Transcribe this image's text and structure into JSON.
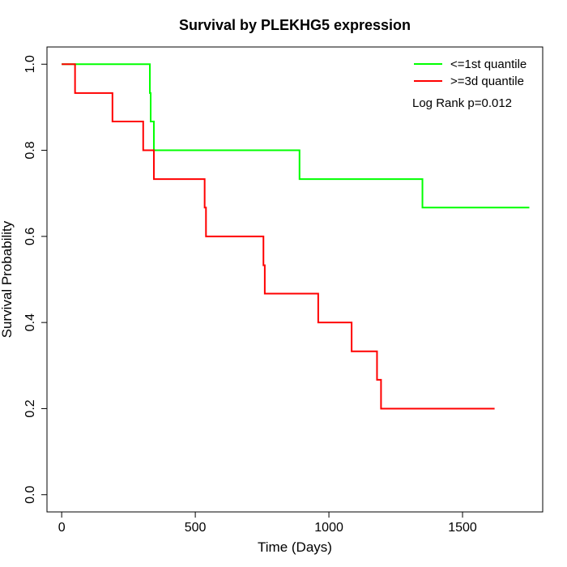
{
  "chart_data": {
    "type": "line",
    "step": true,
    "title": "Survival by PLEKHG5 expression",
    "xlabel": "Time (Days)",
    "ylabel": "Survival Probability",
    "xlim": [
      -55,
      1800
    ],
    "ylim": [
      -0.04,
      1.04
    ],
    "xticks": [
      0,
      500,
      1000,
      1500
    ],
    "yticks": [
      0.0,
      0.2,
      0.4,
      0.6,
      0.8,
      1.0
    ],
    "xtick_labels": [
      "0",
      "500",
      "1000",
      "1500"
    ],
    "ytick_labels": [
      "0.0",
      "0.2",
      "0.4",
      "0.6",
      "0.8",
      "1.0"
    ],
    "grid": false,
    "legend_position": "top-right",
    "series": [
      {
        "name": "<=1st quantile",
        "color": "#00ff00",
        "x": [
          0,
          330,
          333,
          345,
          890,
          1350,
          1750
        ],
        "y": [
          1.0,
          0.933,
          0.867,
          0.8,
          0.733,
          0.667,
          0.667
        ]
      },
      {
        "name": ">=3d quantile",
        "color": "#ff0000",
        "x": [
          0,
          50,
          190,
          305,
          345,
          535,
          540,
          755,
          760,
          960,
          1085,
          1180,
          1195,
          1620
        ],
        "y": [
          1.0,
          0.933,
          0.867,
          0.8,
          0.733,
          0.667,
          0.6,
          0.533,
          0.467,
          0.4,
          0.333,
          0.267,
          0.2,
          0.2
        ]
      }
    ],
    "annotations": [
      "Log Rank p=0.012"
    ]
  }
}
